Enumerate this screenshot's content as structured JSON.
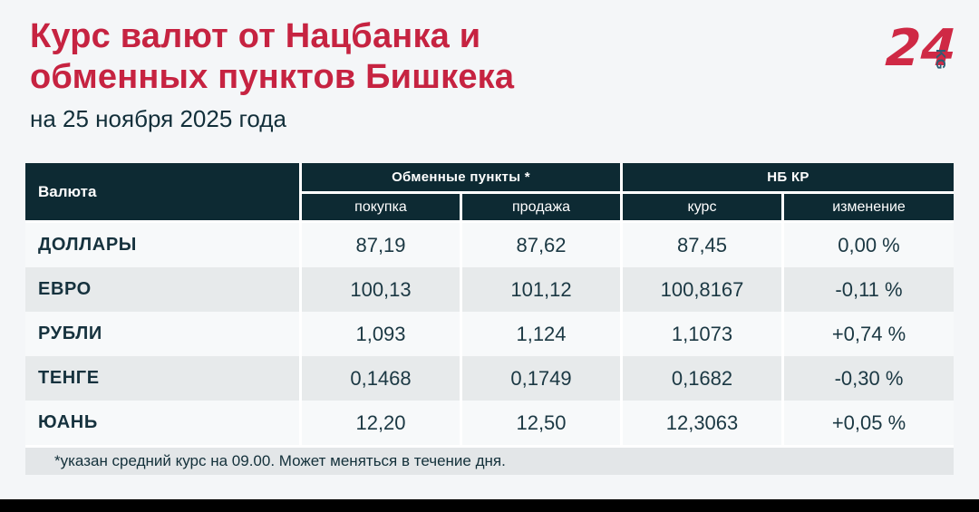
{
  "page": {
    "title_line1": "Курс валют от Нацбанка и",
    "title_line2": "обменных пунктов Бишкека",
    "subtitle": "на 25 ноября 2025 года",
    "footnote": "*указан средний курс на 09.00. Может меняться в течение дня.",
    "logo": {
      "number": "24",
      "suffix": "KG"
    }
  },
  "colors": {
    "accent_red": "#c62341",
    "header_dark_teal": "#0d2a33",
    "text_dark": "#1b3843",
    "row_light": "#f7f9fa",
    "row_alt": "#e7eaeb",
    "footnote_band": "#e3e6e8",
    "page_background": "#f4f6f8",
    "logo_kg_teal": "#2b5d74"
  },
  "table": {
    "col_currency": "Валюта",
    "group_exchange": "Обменные пункты *",
    "group_nbkr": "НБ КР",
    "sub_buy": "покупка",
    "sub_sell": "продажа",
    "sub_rate": "курс",
    "sub_change": "изменение",
    "rows": [
      {
        "currency": "ДОЛЛАРЫ",
        "buy": "87,19",
        "sell": "87,62",
        "rate": "87,45",
        "change": "0,00 %"
      },
      {
        "currency": "ЕВРО",
        "buy": "100,13",
        "sell": "101,12",
        "rate": "100,8167",
        "change": "-0,11 %"
      },
      {
        "currency": "РУБЛИ",
        "buy": "1,093",
        "sell": "1,124",
        "rate": "1,1073",
        "change": "+0,74 %"
      },
      {
        "currency": "ТЕНГЕ",
        "buy": "0,1468",
        "sell": "0,1749",
        "rate": "0,1682",
        "change": "-0,30 %"
      },
      {
        "currency": "ЮАНЬ",
        "buy": "12,20",
        "sell": "12,50",
        "rate": "12,3063",
        "change": "+0,05 %"
      }
    ]
  },
  "chart_data": {
    "type": "table",
    "title": "Курс валют от Нацбанка и обменных пунктов Бишкека",
    "subtitle": "на 25 ноября 2025 года",
    "columns": [
      "Валюта",
      "Обменные пункты: покупка",
      "Обменные пункты: продажа",
      "НБ КР: курс",
      "НБ КР: изменение"
    ],
    "rows": [
      [
        "ДОЛЛАРЫ",
        87.19,
        87.62,
        87.45,
        "0,00 %"
      ],
      [
        "ЕВРО",
        100.13,
        101.12,
        100.8167,
        "-0,11 %"
      ],
      [
        "РУБЛИ",
        1.093,
        1.124,
        1.1073,
        "+0,74 %"
      ],
      [
        "ТЕНГЕ",
        0.1468,
        0.1749,
        0.1682,
        "-0,30 %"
      ],
      [
        "ЮАНЬ",
        12.2,
        12.5,
        12.3063,
        "+0,05 %"
      ]
    ],
    "footnote": "*указан средний курс на 09.00. Может меняться в течение дня."
  }
}
